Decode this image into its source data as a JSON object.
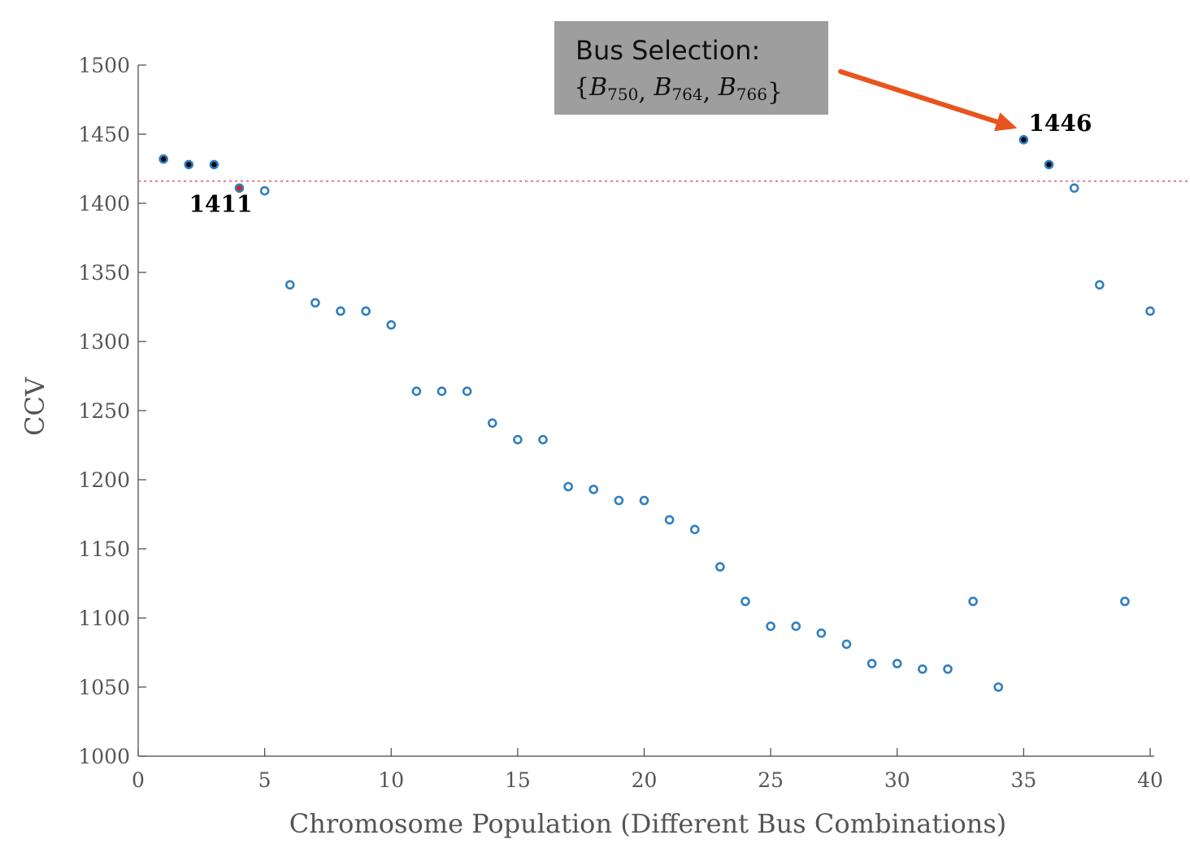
{
  "chart_data": {
    "type": "scatter",
    "title": "",
    "xlabel": "Chromosome Population (Different Bus Combinations)",
    "ylabel": "CCV",
    "xlim": [
      0,
      40
    ],
    "ylim": [
      1000,
      1500
    ],
    "xticks": [
      0,
      5,
      10,
      15,
      20,
      25,
      30,
      35,
      40
    ],
    "yticks": [
      1000,
      1050,
      1100,
      1150,
      1200,
      1250,
      1300,
      1350,
      1400,
      1450,
      1500
    ],
    "grid": false,
    "threshold": 1416,
    "threshold_color": "#e0788a",
    "marker_color": "#2f7fc1",
    "fill_colors": {
      "best": "#000000",
      "threshold": "#e02020"
    },
    "points": [
      {
        "x": 1,
        "y": 1432,
        "fill": "best"
      },
      {
        "x": 2,
        "y": 1428,
        "fill": "best"
      },
      {
        "x": 3,
        "y": 1428,
        "fill": "best"
      },
      {
        "x": 4,
        "y": 1411,
        "fill": "threshold"
      },
      {
        "x": 5,
        "y": 1409,
        "fill": "none"
      },
      {
        "x": 6,
        "y": 1341,
        "fill": "none"
      },
      {
        "x": 7,
        "y": 1328,
        "fill": "none"
      },
      {
        "x": 8,
        "y": 1322,
        "fill": "none"
      },
      {
        "x": 9,
        "y": 1322,
        "fill": "none"
      },
      {
        "x": 10,
        "y": 1312,
        "fill": "none"
      },
      {
        "x": 11,
        "y": 1264,
        "fill": "none"
      },
      {
        "x": 12,
        "y": 1264,
        "fill": "none"
      },
      {
        "x": 13,
        "y": 1264,
        "fill": "none"
      },
      {
        "x": 14,
        "y": 1241,
        "fill": "none"
      },
      {
        "x": 15,
        "y": 1229,
        "fill": "none"
      },
      {
        "x": 16,
        "y": 1229,
        "fill": "none"
      },
      {
        "x": 17,
        "y": 1195,
        "fill": "none"
      },
      {
        "x": 18,
        "y": 1193,
        "fill": "none"
      },
      {
        "x": 19,
        "y": 1185,
        "fill": "none"
      },
      {
        "x": 20,
        "y": 1185,
        "fill": "none"
      },
      {
        "x": 21,
        "y": 1171,
        "fill": "none"
      },
      {
        "x": 22,
        "y": 1164,
        "fill": "none"
      },
      {
        "x": 23,
        "y": 1137,
        "fill": "none"
      },
      {
        "x": 24,
        "y": 1112,
        "fill": "none"
      },
      {
        "x": 25,
        "y": 1094,
        "fill": "none"
      },
      {
        "x": 26,
        "y": 1094,
        "fill": "none"
      },
      {
        "x": 27,
        "y": 1089,
        "fill": "none"
      },
      {
        "x": 28,
        "y": 1081,
        "fill": "none"
      },
      {
        "x": 29,
        "y": 1067,
        "fill": "none"
      },
      {
        "x": 30,
        "y": 1067,
        "fill": "none"
      },
      {
        "x": 31,
        "y": 1063,
        "fill": "none"
      },
      {
        "x": 32,
        "y": 1063,
        "fill": "none"
      },
      {
        "x": 33,
        "y": 1112,
        "fill": "none"
      },
      {
        "x": 34,
        "y": 1050,
        "fill": "none"
      },
      {
        "x": 35,
        "y": 1446,
        "fill": "best"
      },
      {
        "x": 36,
        "y": 1428,
        "fill": "best"
      },
      {
        "x": 37,
        "y": 1411,
        "fill": "none"
      },
      {
        "x": 38,
        "y": 1341,
        "fill": "none"
      },
      {
        "x": 39,
        "y": 1112,
        "fill": "none"
      },
      {
        "x": 40,
        "y": 1322,
        "fill": "none"
      }
    ],
    "annotations": [
      {
        "text": "1411",
        "x": 4,
        "y": 1411
      },
      {
        "text": "1446",
        "x": 35,
        "y": 1446
      }
    ],
    "callout": {
      "line1": "Bus Selection:",
      "buses": [
        "750",
        "764",
        "766"
      ],
      "bus_symbol": "B",
      "box_color": "#9e9e9e",
      "arrow_color": "#e8541e",
      "points_to": {
        "x": 35,
        "y": 1446
      }
    }
  }
}
